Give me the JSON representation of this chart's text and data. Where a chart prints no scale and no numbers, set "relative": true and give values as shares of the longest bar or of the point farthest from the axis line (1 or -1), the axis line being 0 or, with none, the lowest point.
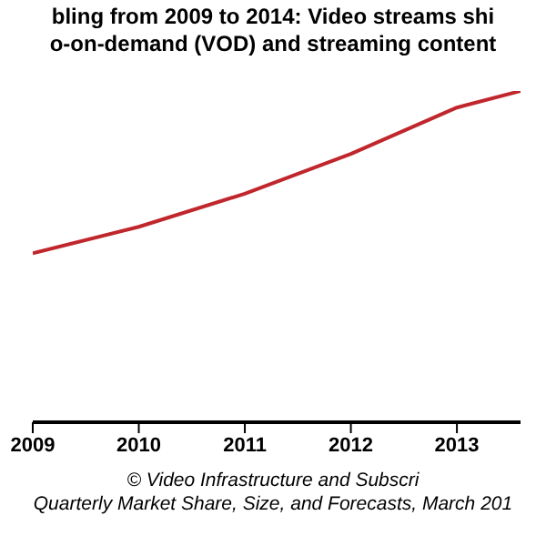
{
  "chart_data": {
    "type": "line",
    "title": "bling from 2009 to 2014: Video streams shi",
    "subtitle": "o-on-demand (VOD) and streaming content",
    "relative": true,
    "x": [
      2009,
      2010,
      2011,
      2012,
      2013,
      2013.6
    ],
    "xlim": [
      2009,
      2013.6
    ],
    "xticks": [
      2009,
      2010,
      2011,
      2012,
      2013
    ],
    "series": [
      {
        "color": "#c0272d",
        "values": [
          0.51,
          0.59,
          0.69,
          0.81,
          0.95,
          1
        ]
      }
    ],
    "annotations": [
      "© Video Infrastructure and Subscri",
      "Quarterly Market Share, Size, and Forecasts, March 201"
    ],
    "grid": false,
    "legend": false,
    "marker": "none"
  }
}
